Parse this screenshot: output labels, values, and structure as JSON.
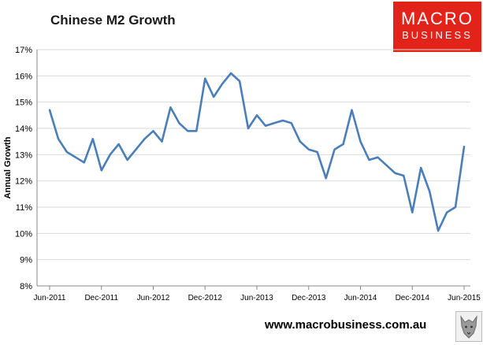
{
  "header": {
    "title": "Chinese M2 Growth"
  },
  "logo": {
    "line1": "MACRO",
    "line2": "BUSINESS"
  },
  "footer": {
    "website": "www.macrobusiness.com.au"
  },
  "colors": {
    "series": "#4a7ebb",
    "logo_bg": "#e2231a",
    "grid": "#d9d9d9",
    "axis": "#898989"
  },
  "chart_data": {
    "type": "line",
    "title": "Chinese M2 Growth",
    "xlabel": "",
    "ylabel": "Annual Growth",
    "ylim": [
      8,
      17
    ],
    "grid": "horizontal",
    "legend": "none",
    "yticks": [
      "8%",
      "9%",
      "10%",
      "11%",
      "12%",
      "13%",
      "14%",
      "15%",
      "16%",
      "17%"
    ],
    "xticks": [
      "Jun-2011",
      "Dec-2011",
      "Jun-2012",
      "Dec-2012",
      "Jun-2013",
      "Dec-2013",
      "Jun-2014",
      "Dec-2014",
      "Jun-2015"
    ],
    "x": [
      "2011-06",
      "2011-07",
      "2011-08",
      "2011-09",
      "2011-10",
      "2011-11",
      "2011-12",
      "2012-01",
      "2012-02",
      "2012-03",
      "2012-04",
      "2012-05",
      "2012-06",
      "2012-07",
      "2012-08",
      "2012-09",
      "2012-10",
      "2012-11",
      "2012-12",
      "2013-01",
      "2013-02",
      "2013-03",
      "2013-04",
      "2013-05",
      "2013-06",
      "2013-07",
      "2013-08",
      "2013-09",
      "2013-10",
      "2013-11",
      "2013-12",
      "2014-01",
      "2014-02",
      "2014-03",
      "2014-04",
      "2014-05",
      "2014-06",
      "2014-07",
      "2014-08",
      "2014-09",
      "2014-10",
      "2014-11",
      "2014-12",
      "2015-01",
      "2015-02",
      "2015-03",
      "2015-04",
      "2015-05",
      "2015-06"
    ],
    "series": [
      {
        "values": [
          14.7,
          13.6,
          13.1,
          12.9,
          12.7,
          13.6,
          12.4,
          13.0,
          13.4,
          12.8,
          13.2,
          13.6,
          13.9,
          13.5,
          14.8,
          14.2,
          13.9,
          13.9,
          15.9,
          15.2,
          15.7,
          16.1,
          15.8,
          14.0,
          14.5,
          14.1,
          14.2,
          14.3,
          14.2,
          13.5,
          13.2,
          13.1,
          12.1,
          13.2,
          13.4,
          14.7,
          13.5,
          12.8,
          12.9,
          12.6,
          12.3,
          12.2,
          10.8,
          12.5,
          11.6,
          10.1,
          10.8,
          11.0,
          13.3
        ]
      }
    ]
  }
}
